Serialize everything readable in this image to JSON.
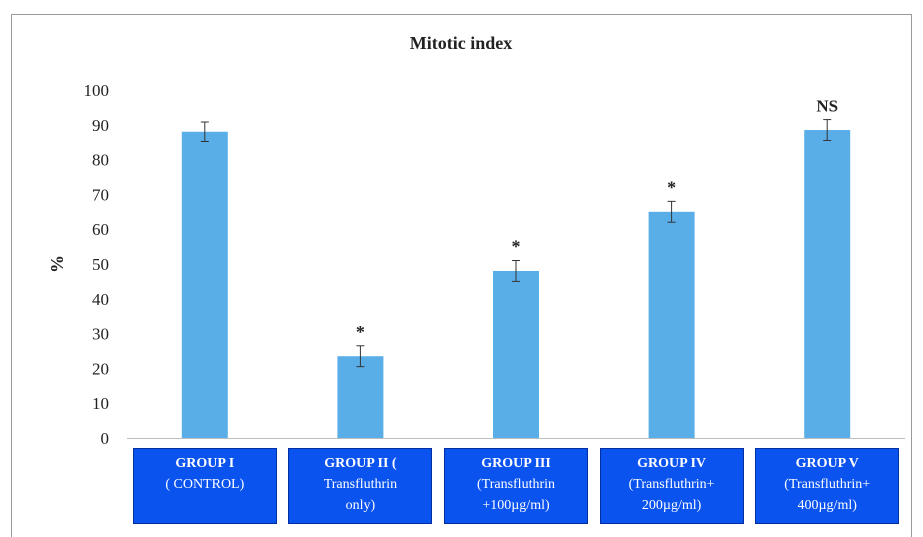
{
  "chart_data": {
    "type": "bar",
    "title": "Mitotic index",
    "ylabel": "%",
    "ylim": [
      0,
      100
    ],
    "yticks": [
      0,
      10,
      20,
      30,
      40,
      50,
      60,
      70,
      80,
      90,
      100
    ],
    "categories": [
      [
        "GROUP I",
        "( CONTROL)",
        ""
      ],
      [
        "GROUP II (",
        "Transfluthrin",
        "only)"
      ],
      [
        "GROUP III",
        "(Transfluthrin",
        "+100µg/ml)"
      ],
      [
        "GROUP IV",
        "(Transfluthrin+",
        "200µg/ml)"
      ],
      [
        "GROUP V",
        "(Transfluthrin+",
        "400µg/ml)"
      ]
    ],
    "values": [
      88,
      23.5,
      48,
      65,
      88.5
    ],
    "error": [
      2.8,
      3,
      3,
      3,
      3
    ],
    "significance": [
      "",
      "*",
      "*",
      "*",
      "NS"
    ],
    "bar_color": "#5aaee8",
    "label_box_color": "#0b53ef",
    "grid": false
  }
}
